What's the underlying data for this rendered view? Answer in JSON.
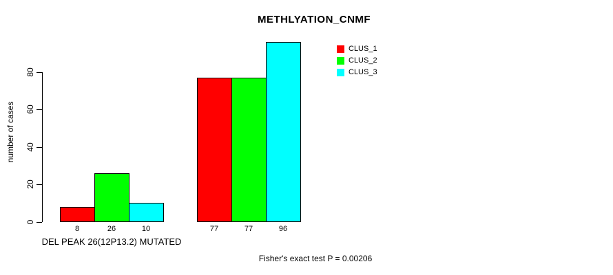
{
  "title": "METHLYATION_CNMF",
  "footnote": "Fisher's exact test P = 0.00206",
  "chart_data": {
    "type": "bar",
    "title": "METHLYATION_CNMF",
    "xlabel": "",
    "ylabel": "number of cases",
    "yticks": [
      0,
      20,
      40,
      60,
      80
    ],
    "ylim": [
      0,
      96
    ],
    "grid": false,
    "legend_position": "top-right",
    "bar_outline_color": "#000000",
    "background_color": "#ffffff",
    "series": [
      {
        "name": "CLUS_1",
        "color": "#ff0000",
        "values": [
          8,
          77
        ]
      },
      {
        "name": "CLUS_2",
        "color": "#00ff00",
        "values": [
          26,
          77
        ]
      },
      {
        "name": "CLUS_3",
        "color": "#00ffff",
        "values": [
          10,
          96
        ]
      }
    ],
    "groups": [
      {
        "label": "DEL PEAK 26(12P13.2) MUTATED",
        "values": [
          8,
          26,
          10
        ]
      },
      {
        "label": "",
        "values": [
          77,
          77,
          96
        ]
      }
    ],
    "bar_value_labels": [
      [
        "8",
        "26",
        "10"
      ],
      [
        "77",
        "77",
        "96"
      ]
    ],
    "annotation": "Fisher's exact test P = 0.00206"
  },
  "legend": {
    "entries": [
      {
        "label": "CLUS_1",
        "color": "#ff0000"
      },
      {
        "label": "CLUS_2",
        "color": "#00ff00"
      },
      {
        "label": "CLUS_3",
        "color": "#00ffff"
      }
    ]
  }
}
